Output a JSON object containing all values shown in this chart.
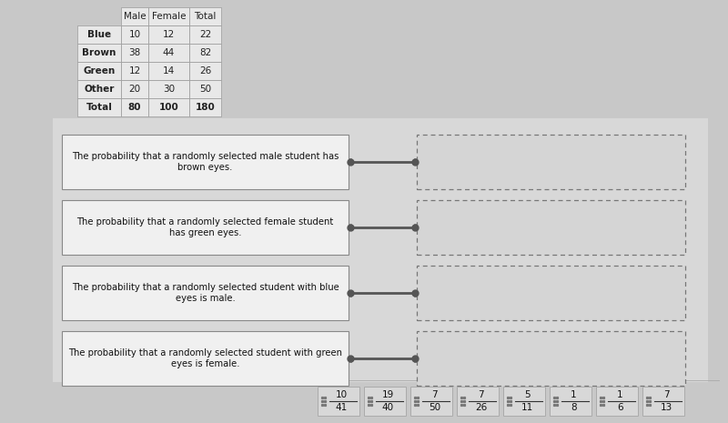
{
  "background_color": "#c8c8c8",
  "table_data": {
    "headers": [
      "",
      "Male",
      "Female",
      "Total"
    ],
    "rows": [
      [
        "Blue",
        "10",
        "12",
        "22"
      ],
      [
        "Brown",
        "38",
        "44",
        "82"
      ],
      [
        "Green",
        "12",
        "14",
        "26"
      ],
      [
        "Other",
        "20",
        "30",
        "50"
      ],
      [
        "Total",
        "80",
        "100",
        "180"
      ]
    ]
  },
  "left_boxes": [
    "The probability that a randomly selected male student has\nbrown eyes.",
    "The probability that a randomly selected female student\nhas green eyes.",
    "The probability that a randomly selected student with blue\neyes is male.",
    "The probability that a randomly selected student with green\neyes is female."
  ],
  "fraction_tiles": [
    {
      "num": "10",
      "den": "41"
    },
    {
      "num": "19",
      "den": "40"
    },
    {
      "num": "7",
      "den": "50"
    },
    {
      "num": "7",
      "den": "26"
    },
    {
      "num": "5",
      "den": "11"
    },
    {
      "num": "1",
      "den": "8"
    },
    {
      "num": "1",
      "den": "6"
    },
    {
      "num": "7",
      "den": "13"
    }
  ],
  "table_bg": "#e8e8e8",
  "box_bg": "#ebebeb",
  "connector_color": "#555555"
}
